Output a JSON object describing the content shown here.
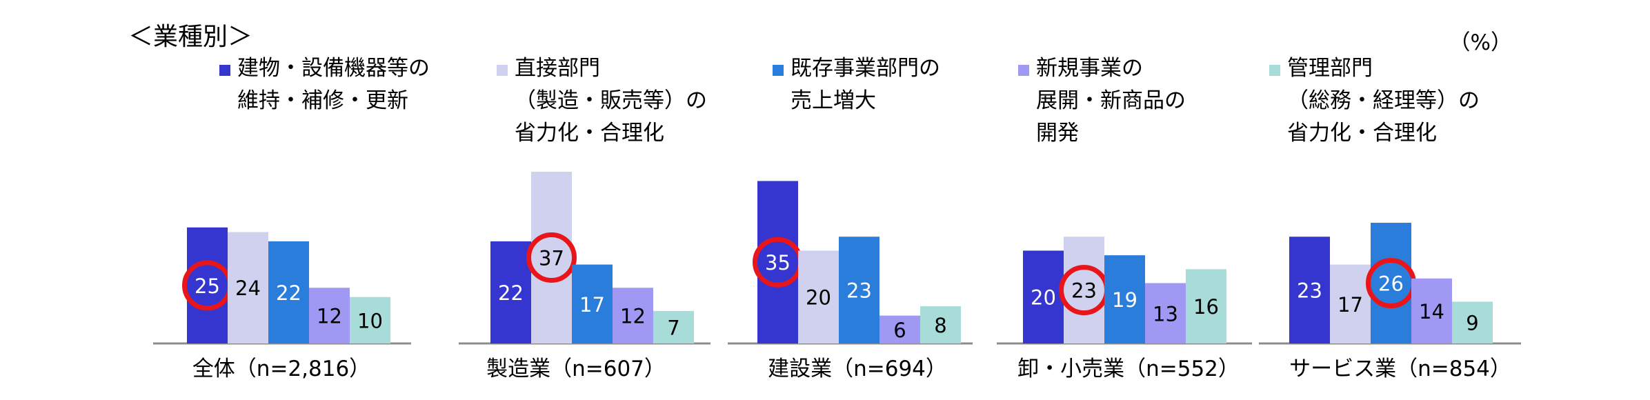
{
  "title": "＜業種別＞",
  "unit_label": "（%）",
  "colors": {
    "series": [
      "#3535cf",
      "#d0d1ee",
      "#2a7ddb",
      "#9f99f4",
      "#a7dcd9"
    ],
    "highlight_ring": "#e8151b",
    "axis": "#8c8c8c"
  },
  "legend": [
    {
      "lines": [
        "建物・設備機器等の",
        "維持・補修・更新"
      ]
    },
    {
      "lines": [
        "直接部門",
        "（製造・販売等）の",
        "省力化・合理化"
      ]
    },
    {
      "lines": [
        "既存事業部門の",
        "売上増大"
      ]
    },
    {
      "lines": [
        "新規事業の",
        "展開・新商品の",
        "開発"
      ]
    },
    {
      "lines": [
        "管理部門",
        "（総務・経理等）の",
        "省力化・合理化"
      ]
    }
  ],
  "chart_data": {
    "type": "bar",
    "categories": [
      "全体（n=2,816）",
      "製造業（n=607）",
      "建設業（n=694）",
      "卸・小売業（n=552）",
      "サービス業（n=854）"
    ],
    "series": [
      {
        "name": "建物・設備機器等の維持・補修・更新",
        "values": [
          25,
          22,
          35,
          20,
          23
        ]
      },
      {
        "name": "直接部門（製造・販売等）の省力化・合理化",
        "values": [
          24,
          37,
          20,
          23,
          17
        ]
      },
      {
        "name": "既存事業部門の売上増大",
        "values": [
          22,
          17,
          23,
          19,
          26
        ]
      },
      {
        "name": "新規事業の展開・新商品の開発",
        "values": [
          12,
          12,
          6,
          13,
          14
        ]
      },
      {
        "name": "管理部門（総務・経理等）の省力化・合理化",
        "values": [
          10,
          7,
          8,
          16,
          9
        ]
      }
    ],
    "highlighted_max_series_index": [
      0,
      1,
      0,
      1,
      2
    ],
    "ylim": [
      0,
      40
    ],
    "grid": false,
    "legend_position": "top"
  }
}
